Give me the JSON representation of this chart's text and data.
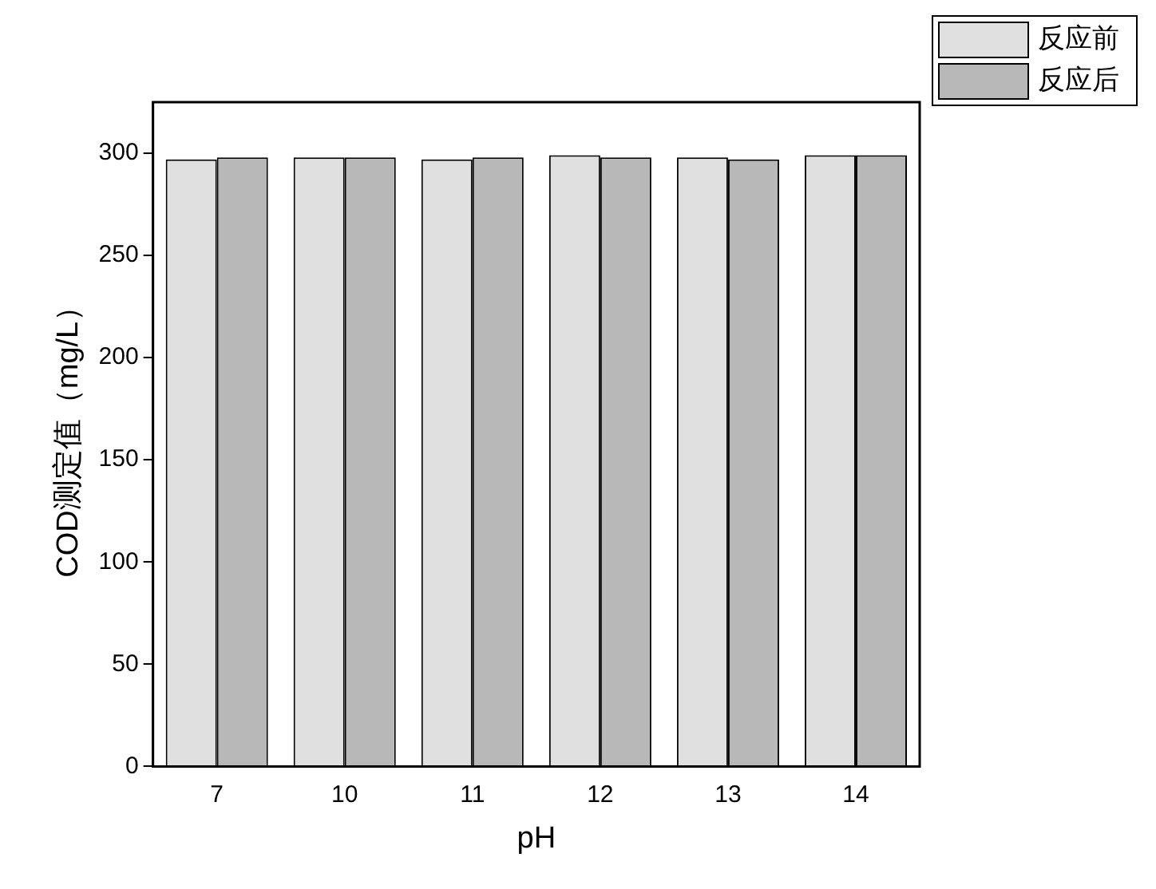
{
  "chart_data": {
    "type": "bar",
    "xlabel": "pH",
    "ylabel": "COD测定值（mg/L）",
    "categories": [
      "7",
      "10",
      "11",
      "12",
      "13",
      "14"
    ],
    "series": [
      {
        "name": "反应前",
        "color": "#e0e0e0",
        "values": [
          297,
          298,
          297,
          299,
          298,
          299
        ]
      },
      {
        "name": "反应后",
        "color": "#b8b8b8",
        "values": [
          298,
          298,
          298,
          298,
          297,
          299
        ]
      }
    ],
    "ylim": [
      0,
      325
    ],
    "yticks": [
      0,
      50,
      100,
      150,
      200,
      250,
      300
    ],
    "grid": false,
    "legend": "top right"
  }
}
